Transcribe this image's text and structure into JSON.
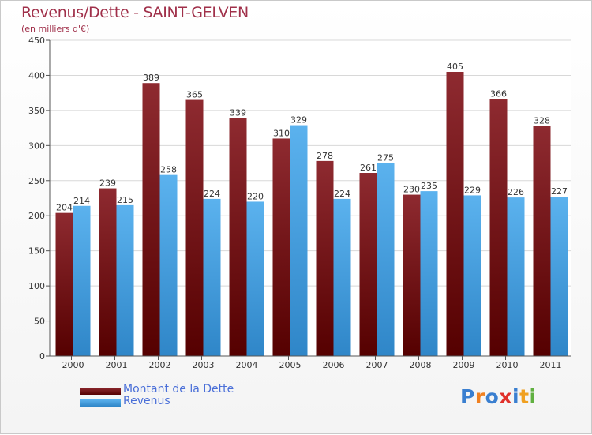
{
  "chart_data": {
    "type": "bar",
    "title": "Revenus/Dette - SAINT-GELVEN",
    "subtitle": "(en milliers d'€)",
    "categories": [
      "2000",
      "2001",
      "2002",
      "2003",
      "2004",
      "2005",
      "2006",
      "2007",
      "2008",
      "2009",
      "2010",
      "2011"
    ],
    "series": [
      {
        "name": "Montant de la Dette",
        "color": "#7a1418",
        "values": [
          204,
          239,
          389,
          365,
          339,
          310,
          278,
          261,
          230,
          405,
          366,
          328
        ]
      },
      {
        "name": "Revenus",
        "color": "#3d9be0",
        "values": [
          214,
          215,
          258,
          224,
          220,
          329,
          224,
          275,
          235,
          229,
          226,
          227
        ]
      }
    ],
    "ylim": [
      0,
      450
    ],
    "yticks": [
      0,
      50,
      100,
      150,
      200,
      250,
      300,
      350,
      400,
      450
    ],
    "grid": true,
    "legend_position": "bottom-left"
  },
  "branding": {
    "logo_letters": [
      "P",
      "r",
      "o",
      "x",
      "i",
      "t",
      "i"
    ],
    "logo_colors": [
      "#3a7fd0",
      "#f08020",
      "#3a7fd0",
      "#e0302a",
      "#3a7fd0",
      "#f0a020",
      "#60b040"
    ]
  }
}
